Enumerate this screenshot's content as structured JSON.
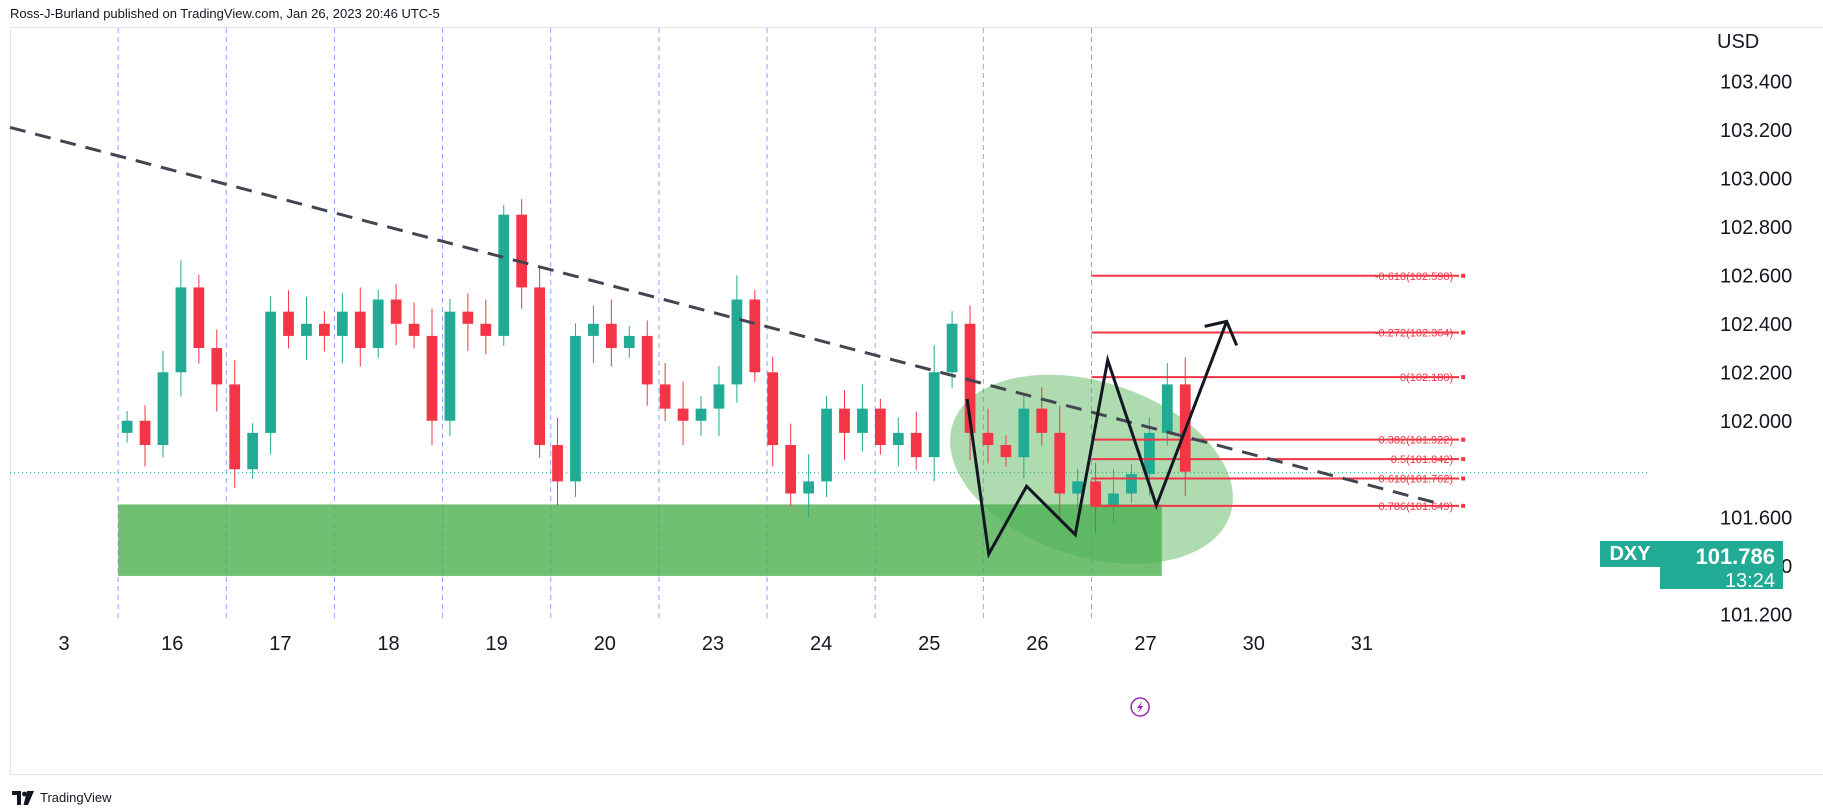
{
  "header": {
    "published": "Ross-J-Burland published on TradingView.com, Jan 26, 2023 20:46 UTC-5"
  },
  "footer": {
    "brand": "TradingView",
    "logo_icon": "tradingview-logo-icon"
  },
  "price_badge": {
    "ticker": "DXY",
    "price": "101.786",
    "countdown": "13:24",
    "color": "#22ab94"
  },
  "colors": {
    "up": "#22ab94",
    "down": "#f23645",
    "fib": "#f23645",
    "zone": "#4caf50",
    "trend": "#434651"
  },
  "chart_data": {
    "type": "candlestick",
    "symbol": "DXY",
    "currency_label": "USD",
    "y_ticks": [
      101.2,
      101.4,
      101.6,
      101.8,
      102.0,
      102.2,
      102.4,
      102.6,
      102.8,
      103.0,
      103.2,
      103.4
    ],
    "y_tick_labels": [
      "101.200",
      "101.400",
      "101.600",
      "",
      "102.000",
      "102.200",
      "102.400",
      "102.600",
      "102.800",
      "103.000",
      "103.200",
      "103.400"
    ],
    "ylim": [
      101.17,
      103.62
    ],
    "x_ticks": [
      {
        "label": "3",
        "day_index": -0.5
      },
      {
        "label": "16",
        "day_index": 0.5
      },
      {
        "label": "17",
        "day_index": 1.5
      },
      {
        "label": "18",
        "day_index": 2.5
      },
      {
        "label": "19",
        "day_index": 3.5
      },
      {
        "label": "20",
        "day_index": 4.5
      },
      {
        "label": "23",
        "day_index": 5.5
      },
      {
        "label": "24",
        "day_index": 6.5
      },
      {
        "label": "25",
        "day_index": 7.5
      },
      {
        "label": "26",
        "day_index": 8.5
      },
      {
        "label": "27",
        "day_index": 9.5
      },
      {
        "label": "30",
        "day_index": 10.5
      },
      {
        "label": "31",
        "day_index": 11.5
      }
    ],
    "xlim": [
      -1,
      12.5
    ],
    "fib_levels": [
      {
        "label": "-0.618(102.598)",
        "value": 102.598
      },
      {
        "label": "-0.272(102.364)",
        "value": 102.364
      },
      {
        "label": "0(102.180)",
        "value": 102.18
      },
      {
        "label": "0.382(101.922)",
        "value": 101.922
      },
      {
        "label": "0.5(101.842)",
        "value": 101.842
      },
      {
        "label": "0.618(101.762)",
        "value": 101.762
      },
      {
        "label": "0.786(101.649)",
        "value": 101.649
      }
    ],
    "last_price": 101.786,
    "support_zone": {
      "from_day": 0,
      "to_day": 9.65,
      "low": 101.36,
      "high": 101.655
    },
    "trendline": [
      {
        "day": -1,
        "value": 103.21
      },
      {
        "day": 12.2,
        "value": 101.66
      }
    ],
    "projection_path": [
      {
        "day": 7.85,
        "value": 102.09
      },
      {
        "day": 8.05,
        "value": 101.45
      },
      {
        "day": 8.4,
        "value": 101.73
      },
      {
        "day": 8.85,
        "value": 101.53
      },
      {
        "day": 9.15,
        "value": 102.25
      },
      {
        "day": 9.6,
        "value": 101.65
      },
      {
        "day": 10.25,
        "value": 102.41
      }
    ],
    "ellipse": {
      "center_day": 9.0,
      "center_value": 101.8,
      "radius_days": 1.35,
      "radius_value": 0.36
    },
    "closes": [
      102.0,
      101.9,
      102.2,
      102.55,
      102.3,
      102.15,
      101.8,
      101.95,
      102.45,
      102.35,
      102.4,
      102.35,
      102.45,
      102.3,
      102.5,
      102.4,
      102.35,
      102.0,
      102.45,
      102.4,
      102.35,
      102.85,
      102.55,
      101.9,
      101.75,
      102.35,
      102.4,
      102.3,
      102.35,
      102.15,
      102.05,
      102.0,
      102.05,
      102.15,
      102.5,
      102.2,
      101.9,
      101.7,
      101.75,
      102.05,
      101.95,
      102.05,
      101.9,
      101.95,
      101.85,
      102.2,
      102.4,
      101.95,
      101.9,
      101.85,
      102.05,
      101.95,
      101.7,
      101.75,
      101.65,
      101.7,
      101.78,
      101.95,
      102.15,
      101.79
    ],
    "open_day": 0.0,
    "close_day": 9.95
  }
}
